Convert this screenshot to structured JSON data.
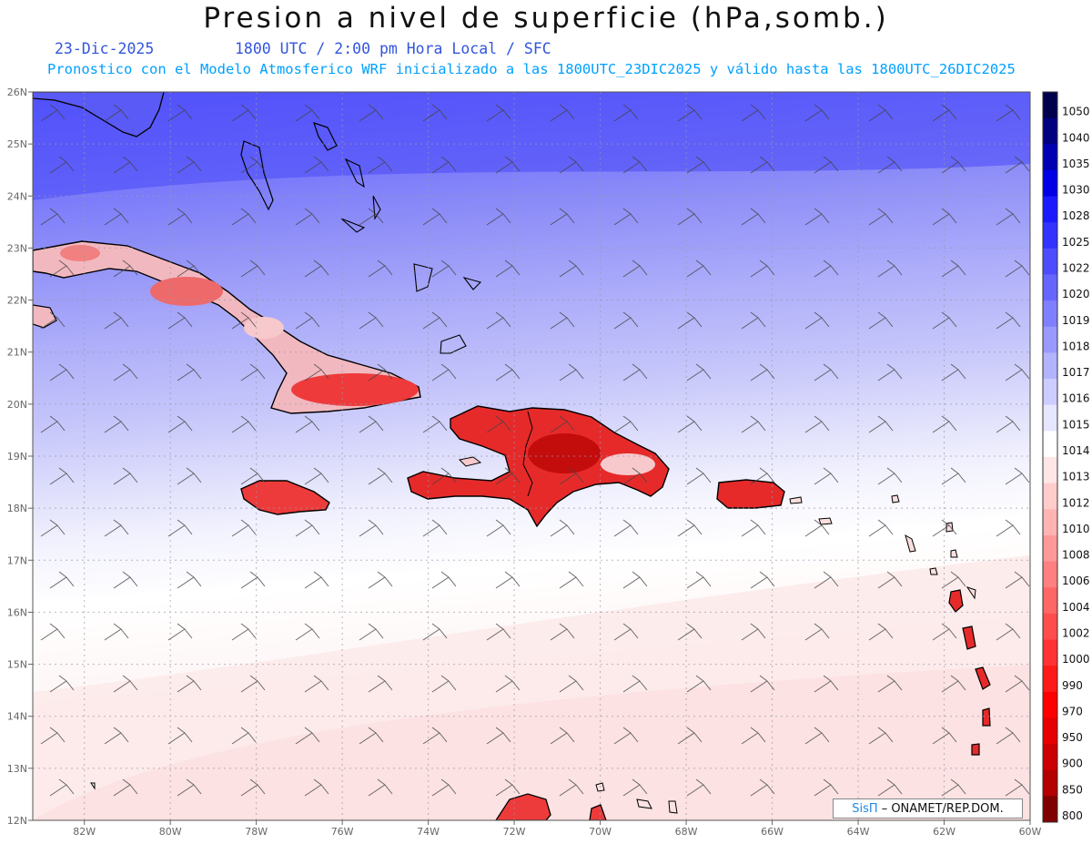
{
  "header": {
    "title": "Presion a nivel de superficie (hPa,somb.)",
    "date": "23-Dic-2025",
    "time": "1800 UTC / 2:00 pm Hora Local / SFC",
    "subtitle": "Pronostico con el Modelo Atmosferico WRF inicializado a las 1800UTC_23DIC2025 y válido hasta las  1800UTC_26DIC2025"
  },
  "map": {
    "lat_labels": [
      "26N",
      "25N",
      "24N",
      "23N",
      "22N",
      "21N",
      "20N",
      "19N",
      "18N",
      "17N",
      "16N",
      "15N",
      "14N",
      "13N",
      "12N"
    ],
    "lon_labels": [
      "82W",
      "80W",
      "78W",
      "76W",
      "74W",
      "72W",
      "70W",
      "68W",
      "66W",
      "64W",
      "62W",
      "60W"
    ],
    "lat_range": [
      12,
      26
    ],
    "lon_range": [
      -83.2,
      -60
    ],
    "grid": true,
    "wind_barbs": "northeasterly trade winds"
  },
  "colorbar": {
    "levels": [
      "1050",
      "1040",
      "1035",
      "1030",
      "1028",
      "1025",
      "1022",
      "1020",
      "1019",
      "1018",
      "1017",
      "1016",
      "1015",
      "1014",
      "1013",
      "1012",
      "1010",
      "1008",
      "1006",
      "1004",
      "1002",
      "1000",
      "990",
      "970",
      "950",
      "900",
      "850",
      "800"
    ],
    "colors": [
      "#00004d",
      "#000080",
      "#0000b3",
      "#0000e6",
      "#1a1aff",
      "#3333ff",
      "#4d4dff",
      "#6666ff",
      "#8080ff",
      "#9999ff",
      "#b3b3ff",
      "#ccccff",
      "#e6e6ff",
      "#ffffff",
      "#ffe6e6",
      "#ffcccc",
      "#ffb3b3",
      "#ff9999",
      "#ff8080",
      "#ff6666",
      "#ff4d4d",
      "#ff3333",
      "#ff1a1a",
      "#ff0000",
      "#e60000",
      "#cc0000",
      "#b30000",
      "#800000"
    ]
  },
  "credit": {
    "brand": "SisΠ",
    "org": "– ONAMET/REP.DOM."
  }
}
